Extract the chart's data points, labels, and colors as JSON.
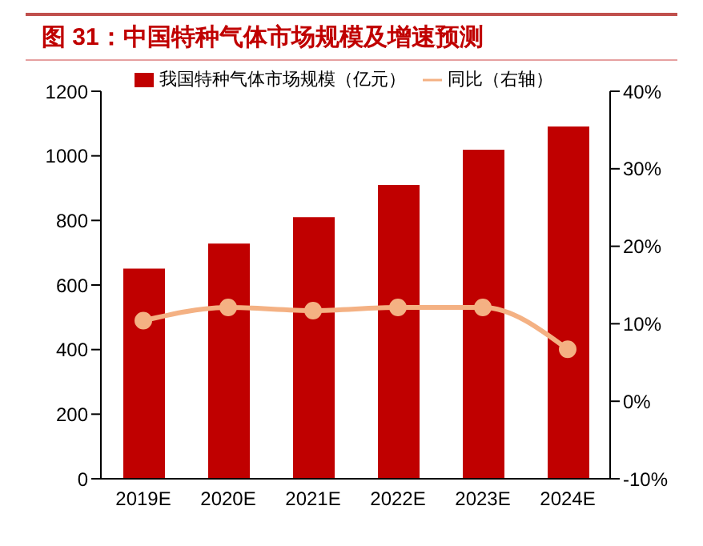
{
  "chart_data": {
    "type": "bar",
    "title": "图 31：中国特种气体市场规模及增速预测",
    "categories": [
      "2019E",
      "2020E",
      "2021E",
      "2022E",
      "2023E",
      "2024E"
    ],
    "series": [
      {
        "name": "我国特种气体市场规模（亿元）",
        "color": "#c00000",
        "values": [
          651,
          728,
          810,
          910,
          1019,
          1091
        ]
      },
      {
        "name": "同比（右轴）",
        "type": "line",
        "axis": "y2",
        "color": "#f4b183",
        "marker": "circle",
        "values": [
          10.4,
          12.1,
          11.7,
          12.1,
          12.1,
          6.7
        ]
      }
    ],
    "ylim": [
      0,
      1200
    ],
    "yticks": [
      0,
      200,
      400,
      600,
      800,
      1000,
      1200
    ],
    "y2lim": [
      -10,
      40
    ],
    "y2ticks": [
      {
        "value": -10,
        "label": "-10%"
      },
      {
        "value": 0,
        "label": "0%"
      },
      {
        "value": 10,
        "label": "10%"
      },
      {
        "value": 20,
        "label": "20%"
      },
      {
        "value": 30,
        "label": "30%"
      },
      {
        "value": 40,
        "label": "40%"
      }
    ],
    "legend": "top"
  }
}
